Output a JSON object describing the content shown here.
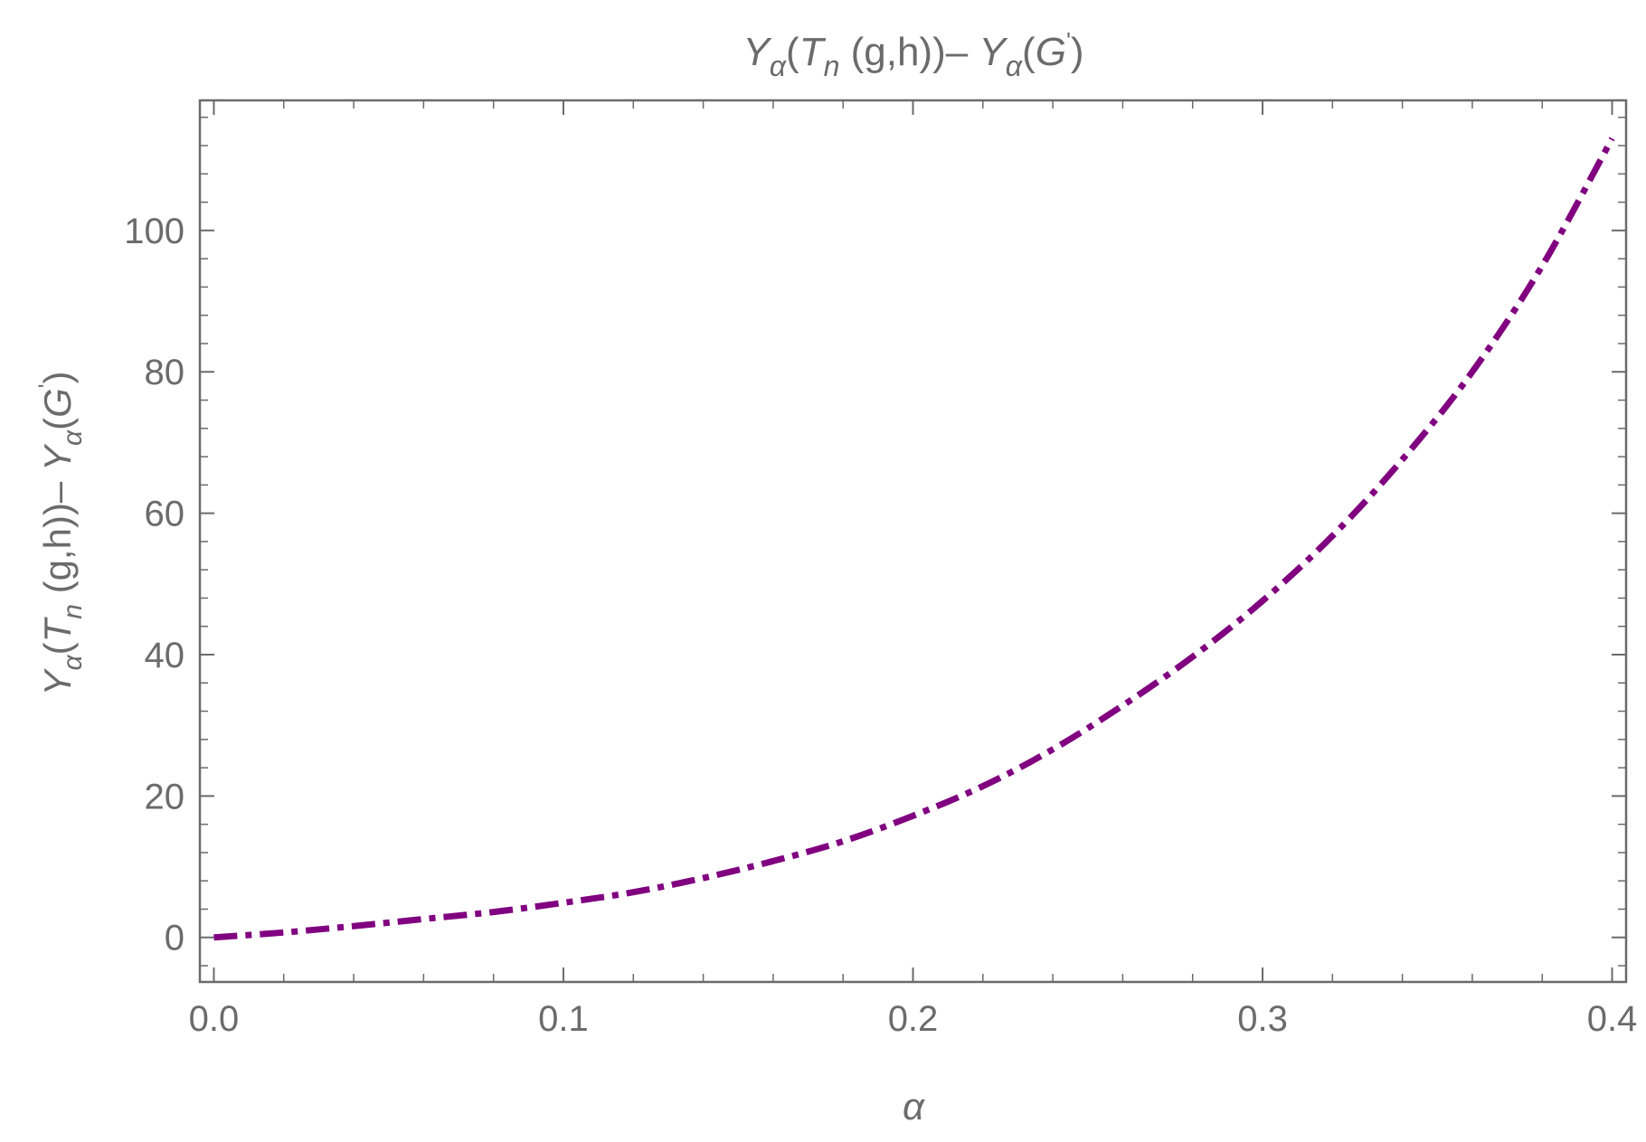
{
  "chart_data": {
    "type": "line",
    "title": {
      "segments": [
        {
          "text": "Y",
          "italic": true
        },
        {
          "text": "α",
          "italic": true,
          "sub": true
        },
        {
          "text": "(",
          "italic": false
        },
        {
          "text": "T",
          "italic": true
        },
        {
          "text": "n",
          "italic": true,
          "sub": true
        },
        {
          "text": "  (g,h))– ",
          "italic": false
        },
        {
          "text": "Y",
          "italic": true
        },
        {
          "text": "α",
          "italic": true,
          "sub": true
        },
        {
          "text": "(",
          "italic": false
        },
        {
          "text": "G",
          "italic": true
        },
        {
          "text": "'",
          "italic": false,
          "sup": true
        },
        {
          "text": ")",
          "italic": false
        }
      ]
    },
    "xlabel": "α",
    "ylabel": {
      "segments": [
        {
          "text": "Y",
          "italic": true
        },
        {
          "text": "α",
          "italic": true,
          "sub": true
        },
        {
          "text": "(",
          "italic": false
        },
        {
          "text": "T",
          "italic": true
        },
        {
          "text": "n",
          "italic": true,
          "sub": true
        },
        {
          "text": "  (g,h))– ",
          "italic": false
        },
        {
          "text": "Y",
          "italic": true
        },
        {
          "text": "α",
          "italic": true,
          "sub": true
        },
        {
          "text": "(",
          "italic": false
        },
        {
          "text": "G",
          "italic": true
        },
        {
          "text": "'",
          "italic": false,
          "sup": true
        },
        {
          "text": ")",
          "italic": false
        }
      ]
    },
    "xlim": [
      -0.004,
      0.404
    ],
    "ylim": [
      -6.3,
      118.4
    ],
    "x_major_ticks": [
      0.0,
      0.1,
      0.2,
      0.3,
      0.4
    ],
    "x_tick_labels": [
      "0.0",
      "0.1",
      "0.2",
      "0.3",
      "0.4"
    ],
    "x_minor_step": 0.02,
    "y_major_ticks": [
      0,
      20,
      40,
      60,
      80,
      100
    ],
    "y_tick_labels": [
      "0",
      "20",
      "40",
      "60",
      "80",
      "100"
    ],
    "y_minor_step": 4,
    "grid": false,
    "series": [
      {
        "color": "#800080",
        "line_style": "dash-dot",
        "x": [
          0.0,
          0.02,
          0.04,
          0.06,
          0.08,
          0.1,
          0.12,
          0.14,
          0.16,
          0.18,
          0.2,
          0.22,
          0.24,
          0.26,
          0.28,
          0.3,
          0.32,
          0.34,
          0.36,
          0.38,
          0.4
        ],
        "y": [
          0.0,
          0.7,
          1.6,
          2.6,
          3.6,
          4.9,
          6.4,
          8.4,
          10.8,
          13.6,
          17.2,
          21.4,
          26.6,
          32.8,
          39.7,
          47.6,
          56.8,
          67.6,
          80.0,
          95.0,
          113.0
        ]
      }
    ]
  }
}
